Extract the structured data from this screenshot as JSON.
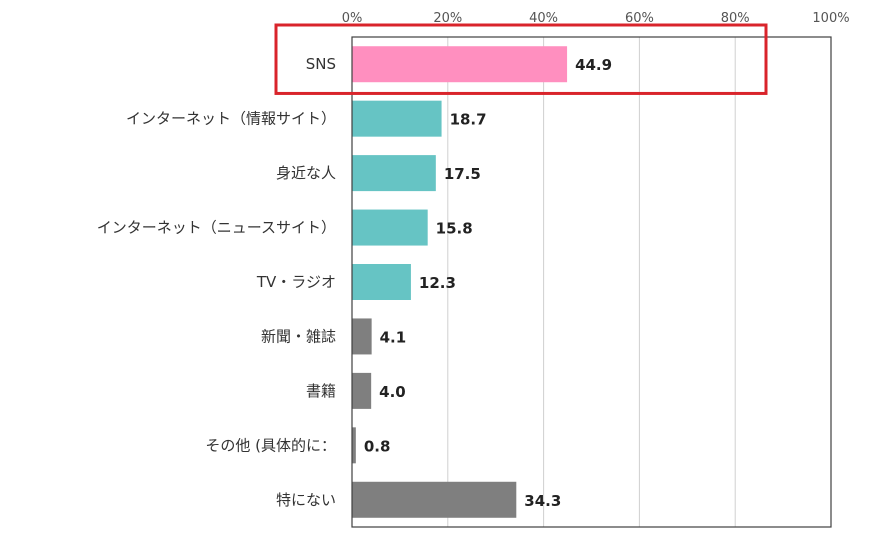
{
  "chart_data": {
    "type": "bar",
    "orientation": "horizontal",
    "title": "",
    "xlabel": "",
    "ylabel": "",
    "xlim": [
      0,
      100
    ],
    "ticks": [
      0,
      20,
      40,
      60,
      80,
      100
    ],
    "tick_labels": [
      "0%",
      "20%",
      "40%",
      "60%",
      "80%",
      "100%"
    ],
    "grid": true,
    "categories": [
      "SNS",
      "インターネット（情報サイト）",
      "身近な人",
      "インターネット（ニュースサイト）",
      "TV・ラジオ",
      "新聞・雑誌",
      "書籍",
      "その他 (具体的に：",
      "特にない"
    ],
    "values": [
      44.9,
      18.7,
      17.5,
      15.8,
      12.3,
      4.1,
      4.0,
      0.8,
      34.3
    ],
    "value_labels": [
      "44.9",
      "18.7",
      "17.5",
      "15.8",
      "12.3",
      "4.1",
      "4.0",
      "0.8",
      "34.3"
    ],
    "bar_colors": [
      "#ff8fbf",
      "#66c4c4",
      "#66c4c4",
      "#66c4c4",
      "#66c4c4",
      "#7f7f7f",
      "#7f7f7f",
      "#7f7f7f",
      "#7f7f7f"
    ],
    "highlight": {
      "category": "SNS",
      "color": "#d9242b"
    }
  }
}
